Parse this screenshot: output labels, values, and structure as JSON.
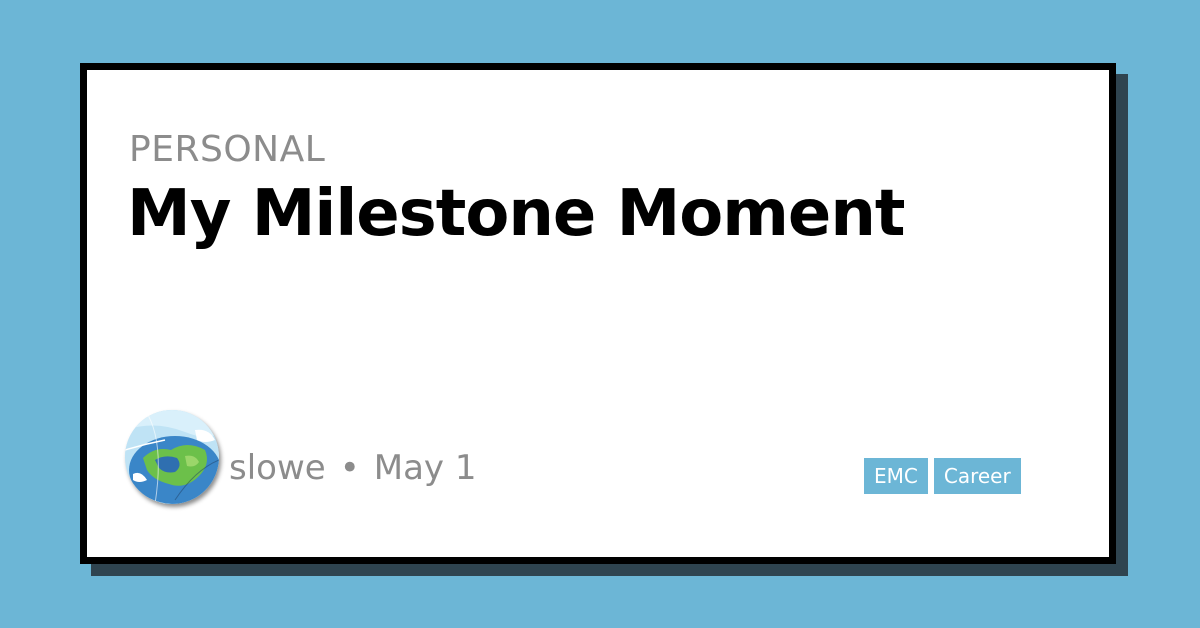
{
  "post": {
    "category": "PERSONAL",
    "title": "My Milestone Moment",
    "author": "slowe",
    "separator": "•",
    "date": "May 1"
  },
  "tags": [
    "EMC",
    "Career"
  ],
  "colors": {
    "background": "#6cb6d6",
    "card": "#ffffff",
    "border": "#000000",
    "shadow": "#2f4450",
    "muted_text": "#8c8c8c",
    "tag_background": "#6cb6d6",
    "tag_text": "#ffffff"
  },
  "icons": {
    "avatar": "globe-map-avatar"
  }
}
